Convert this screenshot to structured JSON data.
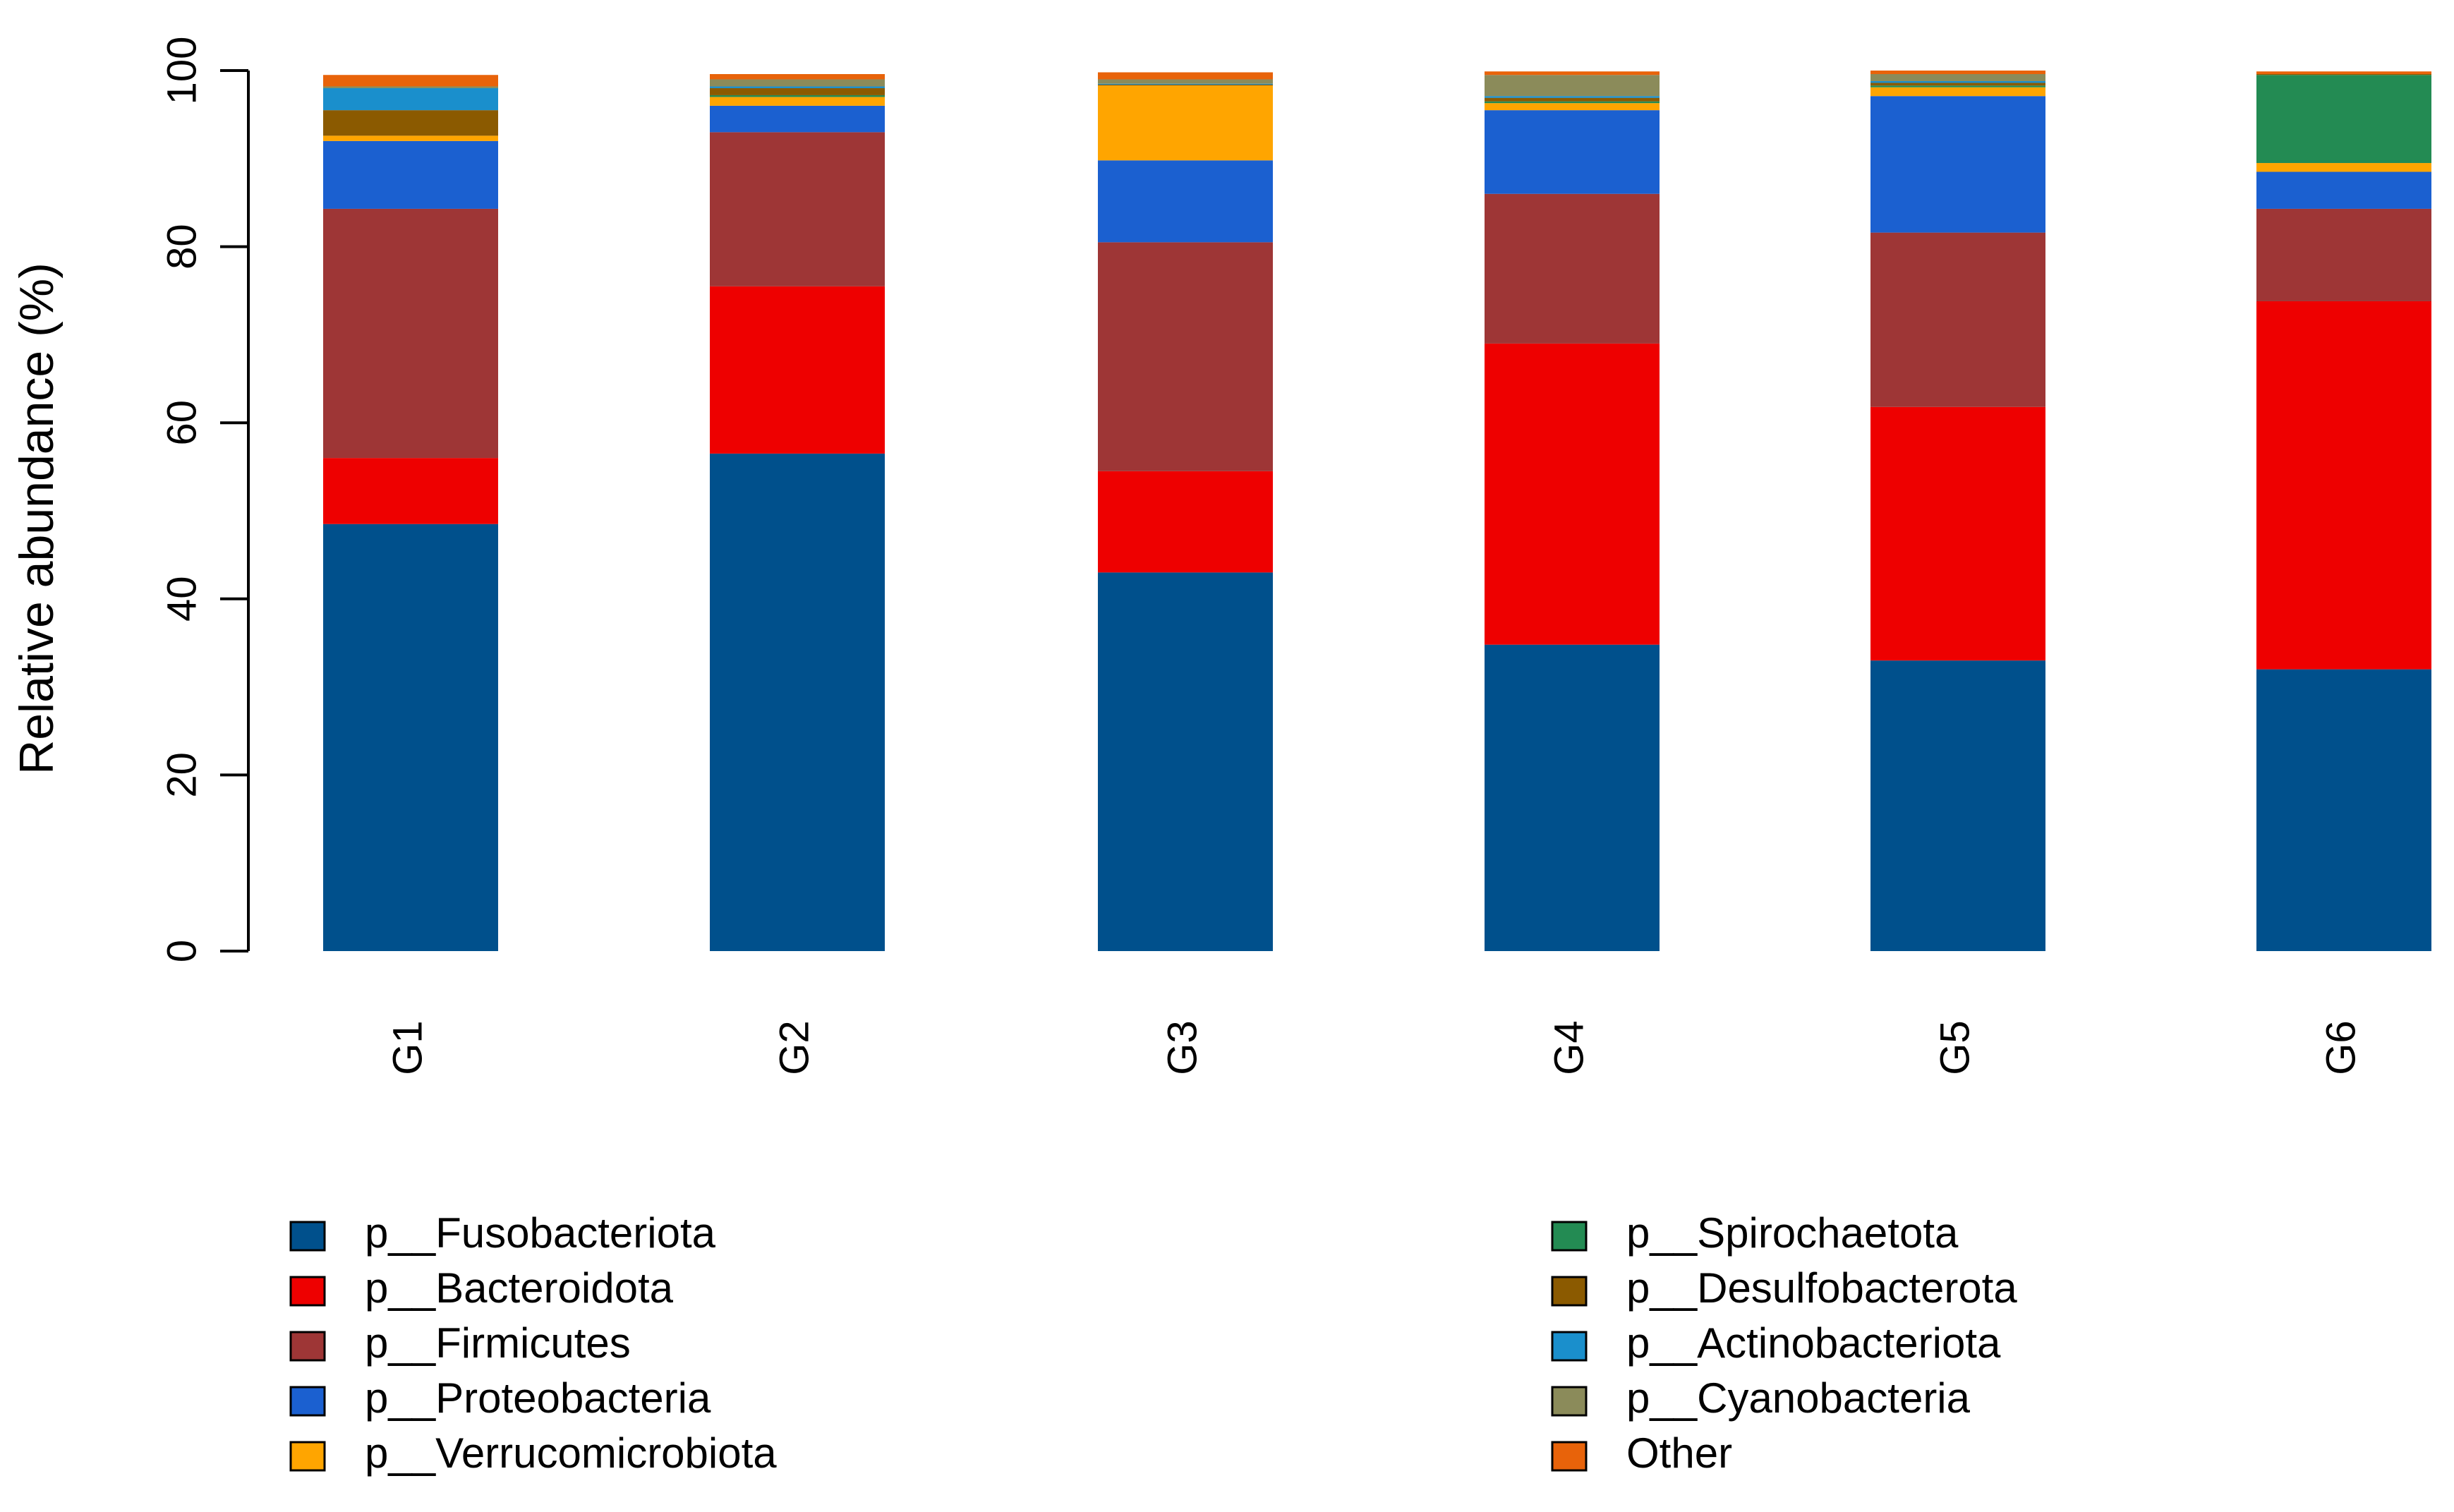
{
  "chart_data": {
    "type": "bar",
    "stacked": true,
    "title": "",
    "xlabel": "",
    "ylabel": "Relative abundance (%)",
    "ylim": [
      0,
      100
    ],
    "yticks": [
      0,
      20,
      40,
      60,
      80,
      100
    ],
    "grid": false,
    "legend_position": "bottom",
    "categories": [
      "G1",
      "G2",
      "G3",
      "G4",
      "G5",
      "G6"
    ],
    "series": [
      {
        "name": "p__Fusobacteriota",
        "color": "#00508C",
        "values": [
          48.5,
          56.5,
          43.0,
          34.8,
          33.0,
          32.0
        ]
      },
      {
        "name": "p__Bacteroidota",
        "color": "#EE0000",
        "values": [
          7.5,
          19.0,
          11.5,
          34.2,
          28.8,
          41.8
        ]
      },
      {
        "name": "p__Firmicutes",
        "color": "#9E3636",
        "values": [
          28.3,
          17.5,
          26.0,
          17.0,
          19.8,
          10.5
        ]
      },
      {
        "name": "p__Proteobacteria",
        "color": "#1B60D0",
        "values": [
          7.7,
          3.0,
          9.3,
          9.5,
          15.5,
          4.2
        ]
      },
      {
        "name": "p__Verrucomicrobiota",
        "color": "#FFA500",
        "values": [
          0.6,
          1.0,
          8.5,
          0.8,
          1.0,
          1.0
        ]
      },
      {
        "name": "p__Spirochaetota",
        "color": "#238B53",
        "values": [
          0.0,
          0.2,
          0.0,
          0.2,
          0.2,
          10.0
        ]
      },
      {
        "name": "p__Desulfobacterota",
        "color": "#8B5A00",
        "values": [
          2.9,
          0.8,
          0.1,
          0.4,
          0.3,
          0.1
        ]
      },
      {
        "name": "p__Actinobacteriota",
        "color": "#1A8FCC",
        "values": [
          2.5,
          0.2,
          0.1,
          0.2,
          0.2,
          0.0
        ]
      },
      {
        "name": "p__Cyanobacteria",
        "color": "#8B8B5A",
        "values": [
          0.2,
          0.8,
          0.5,
          2.4,
          0.8,
          0.0
        ]
      },
      {
        "name": "Other",
        "color": "#E8630A",
        "values": [
          1.3,
          0.6,
          0.8,
          0.4,
          0.4,
          0.3
        ]
      }
    ]
  }
}
